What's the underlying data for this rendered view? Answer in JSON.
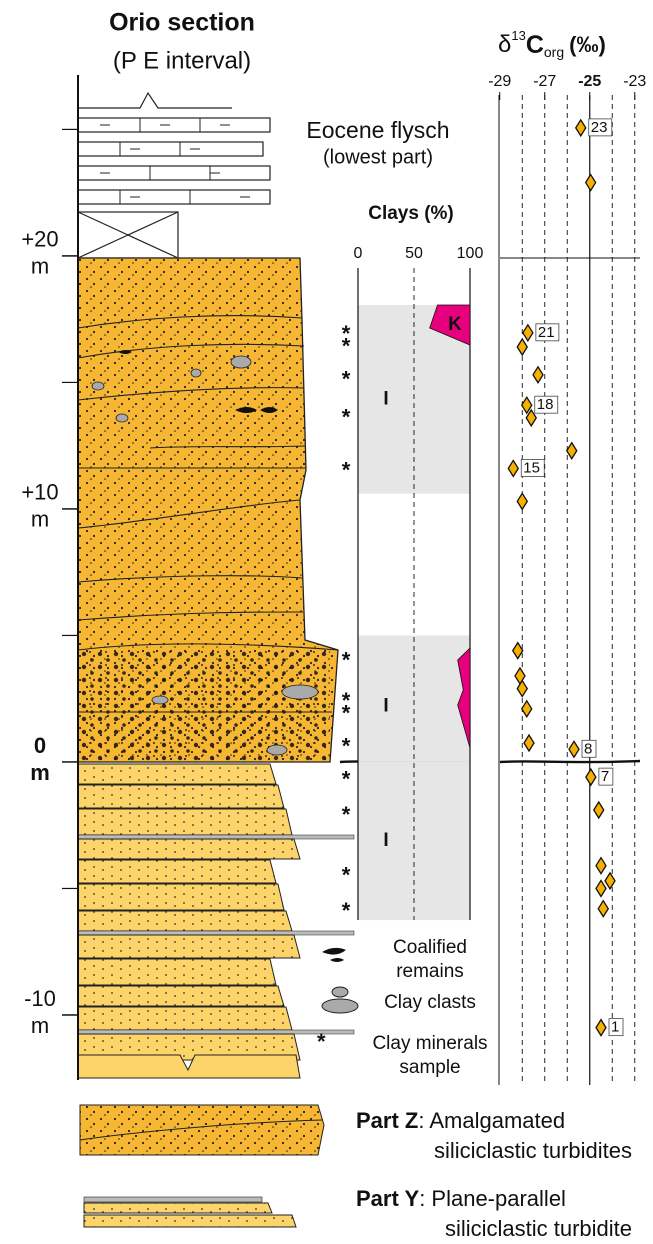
{
  "title": "Orio section",
  "subtitle": "(P  E interval)",
  "log": {
    "ylim": [
      -12.57,
      27.15
    ],
    "yticks": [
      {
        "value": 20,
        "label": "+20"
      },
      {
        "value": 10,
        "label": "+10"
      },
      0,
      -10
    ],
    "minor_ticks": [
      25,
      15,
      5,
      -5
    ],
    "unit": "m",
    "annotation": [
      "Eocene flysch",
      "(lowest part)"
    ]
  },
  "chart_data": [
    {
      "type": "scatter",
      "title_parts": [
        "δ",
        "13",
        "C",
        "org",
        "(‰)"
      ],
      "xlim": [
        -29.3,
        -22.8
      ],
      "xticks": [
        -29,
        -27,
        -25,
        -23
      ],
      "grid_lines": [
        -28,
        -27,
        -26,
        -24,
        -23
      ],
      "reference_line": -25,
      "color": "#f5b000",
      "x": [
        -25.4,
        -24.96,
        -27.75,
        -28.0,
        -27.3,
        -27.8,
        -27.6,
        -25.8,
        -28.4,
        -28.0,
        -28.2,
        -28.1,
        -28.0,
        -27.8,
        -27.7,
        -25.7,
        -24.95,
        -24.6,
        -24.5,
        -24.1,
        -24.5,
        -24.4,
        -24.5
      ],
      "y": [
        25.06,
        22.9,
        16.96,
        16.4,
        15.3,
        14.1,
        13.6,
        12.3,
        11.6,
        10.3,
        4.4,
        3.4,
        2.9,
        2.1,
        0.75,
        0.5,
        -0.6,
        -1.9,
        -4.1,
        -4.7,
        -5.0,
        -5.8,
        -10.5
      ],
      "labels": [
        "23",
        null,
        "21",
        null,
        null,
        "18",
        null,
        null,
        "15",
        null,
        null,
        null,
        null,
        null,
        null,
        "8",
        "7",
        null,
        null,
        null,
        null,
        null,
        "1"
      ]
    },
    {
      "type": "area",
      "title": "Clays (%)",
      "xlim": [
        0,
        100
      ],
      "xticks": [
        0,
        50,
        100
      ],
      "illite": [
        {
          "top": 18.06,
          "base": 10.6,
          "label": "I"
        },
        {
          "top": 5.0,
          "base": 0,
          "label": "I"
        },
        {
          "top": 0,
          "base": -6.25,
          "label": "I"
        }
      ],
      "kaolinite": {
        "label": "K",
        "color": "#e6007e",
        "profiles": [
          {
            "depth": [
              18.06,
              17.15,
              16.48
            ],
            "percent": [
              71,
              64,
              100
            ]
          },
          {
            "depth": [
              4.5,
              4.03,
              2.85,
              2.25,
              0.55
            ],
            "percent": [
              100,
              89,
              94,
              89,
              100
            ]
          }
        ]
      },
      "samples": [
        17.1,
        16.6,
        15.3,
        13.8,
        11.7,
        4.2,
        2.6,
        2.1,
        0.8,
        -0.5,
        -1.9,
        -4.3,
        -5.7
      ]
    }
  ],
  "legend": [
    {
      "lines": [
        "Coalified",
        "remains"
      ]
    },
    {
      "lines": [
        "Clay clasts"
      ]
    },
    {
      "lines": [
        "Clay minerals",
        "sample"
      ]
    }
  ],
  "parts": [
    {
      "name": "Part Z",
      "lines": [
        ": Amalgamated",
        "siliciclastic turbidites"
      ]
    },
    {
      "name": "Part Y",
      "lines": [
        ": Plane-parallel",
        "siliciclastic turbidite"
      ]
    }
  ]
}
